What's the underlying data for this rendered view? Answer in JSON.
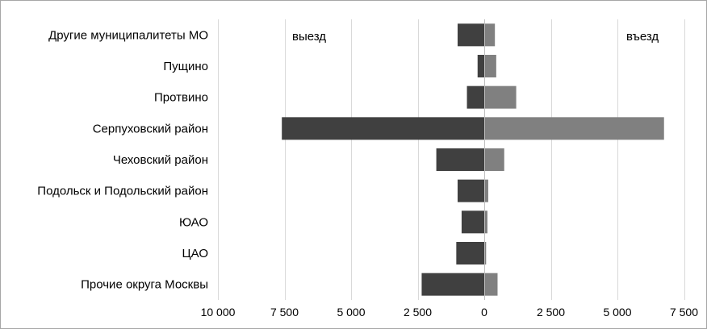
{
  "chart_data": {
    "type": "bar",
    "orientation": "horizontal",
    "categories": [
      "Другие муниципалитеты МО",
      "Пущино",
      "Протвино",
      "Серпуховский район",
      "Чеховский район",
      "Подольск и Подольский район",
      "ЮАО",
      "ЦАО",
      "Прочие округа Москвы"
    ],
    "series": [
      {
        "values": [
          -1000,
          -250,
          -650,
          -7600,
          -1800,
          -1000,
          -850,
          -1050,
          -2350
        ],
        "color": "#404040"
      },
      {
        "values": [
          400,
          450,
          1200,
          6750,
          750,
          150,
          120,
          70,
          500
        ],
        "color": "#808080"
      }
    ],
    "annotations": {
      "left": "выезд",
      "right": "въезд"
    },
    "xlim": [
      -10000,
      8750
    ],
    "xticks": [
      {
        "value": -10000,
        "label": "10 000"
      },
      {
        "value": -7500,
        "label": "7 500"
      },
      {
        "value": -5000,
        "label": "5 000"
      },
      {
        "value": -2500,
        "label": "2 500"
      },
      {
        "value": 0,
        "label": "0"
      },
      {
        "value": 2500,
        "label": "2 500"
      },
      {
        "value": 5000,
        "label": "5 000"
      },
      {
        "value": 7500,
        "label": "7 500"
      }
    ],
    "grid": true,
    "legend": "none",
    "gridline_color": "#d9d9d9",
    "axis_color": "#bfbfbf"
  }
}
